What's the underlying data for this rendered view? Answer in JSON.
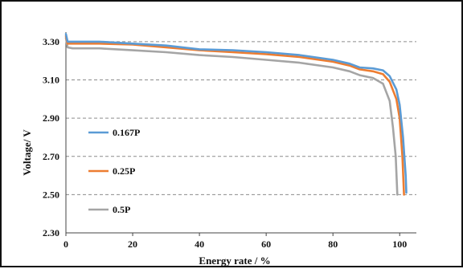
{
  "chart_data": {
    "type": "line",
    "title": "",
    "xlabel": "Energy rate / %",
    "ylabel": "Voltage/ V",
    "xlim": [
      0,
      105
    ],
    "ylim": [
      2.3,
      3.35
    ],
    "x_ticks": [
      0,
      20,
      40,
      60,
      80,
      100
    ],
    "y_ticks": [
      2.3,
      2.5,
      2.7,
      2.9,
      3.1,
      3.3
    ],
    "x_tick_labels": [
      "0",
      "20",
      "40",
      "60",
      "80",
      "100"
    ],
    "y_tick_labels": [
      "2.30",
      "2.50",
      "2.70",
      "2.90",
      "3.10",
      "3.30"
    ],
    "grid": "horizontal-dashed",
    "legend": "left",
    "series": [
      {
        "name": "0.167P",
        "color": "#5b9bd5",
        "points": [
          [
            0,
            3.34
          ],
          [
            0.5,
            3.3
          ],
          [
            2,
            3.3
          ],
          [
            10,
            3.3
          ],
          [
            20,
            3.29
          ],
          [
            30,
            3.28
          ],
          [
            40,
            3.26
          ],
          [
            50,
            3.255
          ],
          [
            60,
            3.245
          ],
          [
            70,
            3.23
          ],
          [
            80,
            3.205
          ],
          [
            85,
            3.185
          ],
          [
            88,
            3.165
          ],
          [
            92,
            3.16
          ],
          [
            95,
            3.15
          ],
          [
            97,
            3.12
          ],
          [
            99,
            3.05
          ],
          [
            100,
            2.97
          ],
          [
            101,
            2.8
          ],
          [
            101.8,
            2.6
          ],
          [
            102,
            2.51
          ]
        ]
      },
      {
        "name": "0.25P",
        "color": "#ed7d31",
        "points": [
          [
            0,
            3.33
          ],
          [
            0.5,
            3.29
          ],
          [
            2,
            3.29
          ],
          [
            10,
            3.29
          ],
          [
            20,
            3.285
          ],
          [
            30,
            3.27
          ],
          [
            40,
            3.255
          ],
          [
            50,
            3.245
          ],
          [
            60,
            3.235
          ],
          [
            70,
            3.22
          ],
          [
            80,
            3.195
          ],
          [
            85,
            3.175
          ],
          [
            88,
            3.155
          ],
          [
            92,
            3.145
          ],
          [
            95,
            3.13
          ],
          [
            97,
            3.09
          ],
          [
            99,
            3.0
          ],
          [
            100,
            2.9
          ],
          [
            100.8,
            2.7
          ],
          [
            101.3,
            2.5
          ]
        ]
      },
      {
        "name": "0.5P",
        "color": "#a5a5a5",
        "points": [
          [
            0,
            3.32
          ],
          [
            0.5,
            3.27
          ],
          [
            2,
            3.265
          ],
          [
            10,
            3.265
          ],
          [
            20,
            3.255
          ],
          [
            30,
            3.245
          ],
          [
            40,
            3.23
          ],
          [
            50,
            3.22
          ],
          [
            60,
            3.205
          ],
          [
            70,
            3.19
          ],
          [
            80,
            3.165
          ],
          [
            85,
            3.145
          ],
          [
            88,
            3.125
          ],
          [
            92,
            3.11
          ],
          [
            95,
            3.08
          ],
          [
            97,
            2.99
          ],
          [
            98,
            2.85
          ],
          [
            98.8,
            2.7
          ],
          [
            99.3,
            2.5
          ]
        ]
      }
    ]
  }
}
